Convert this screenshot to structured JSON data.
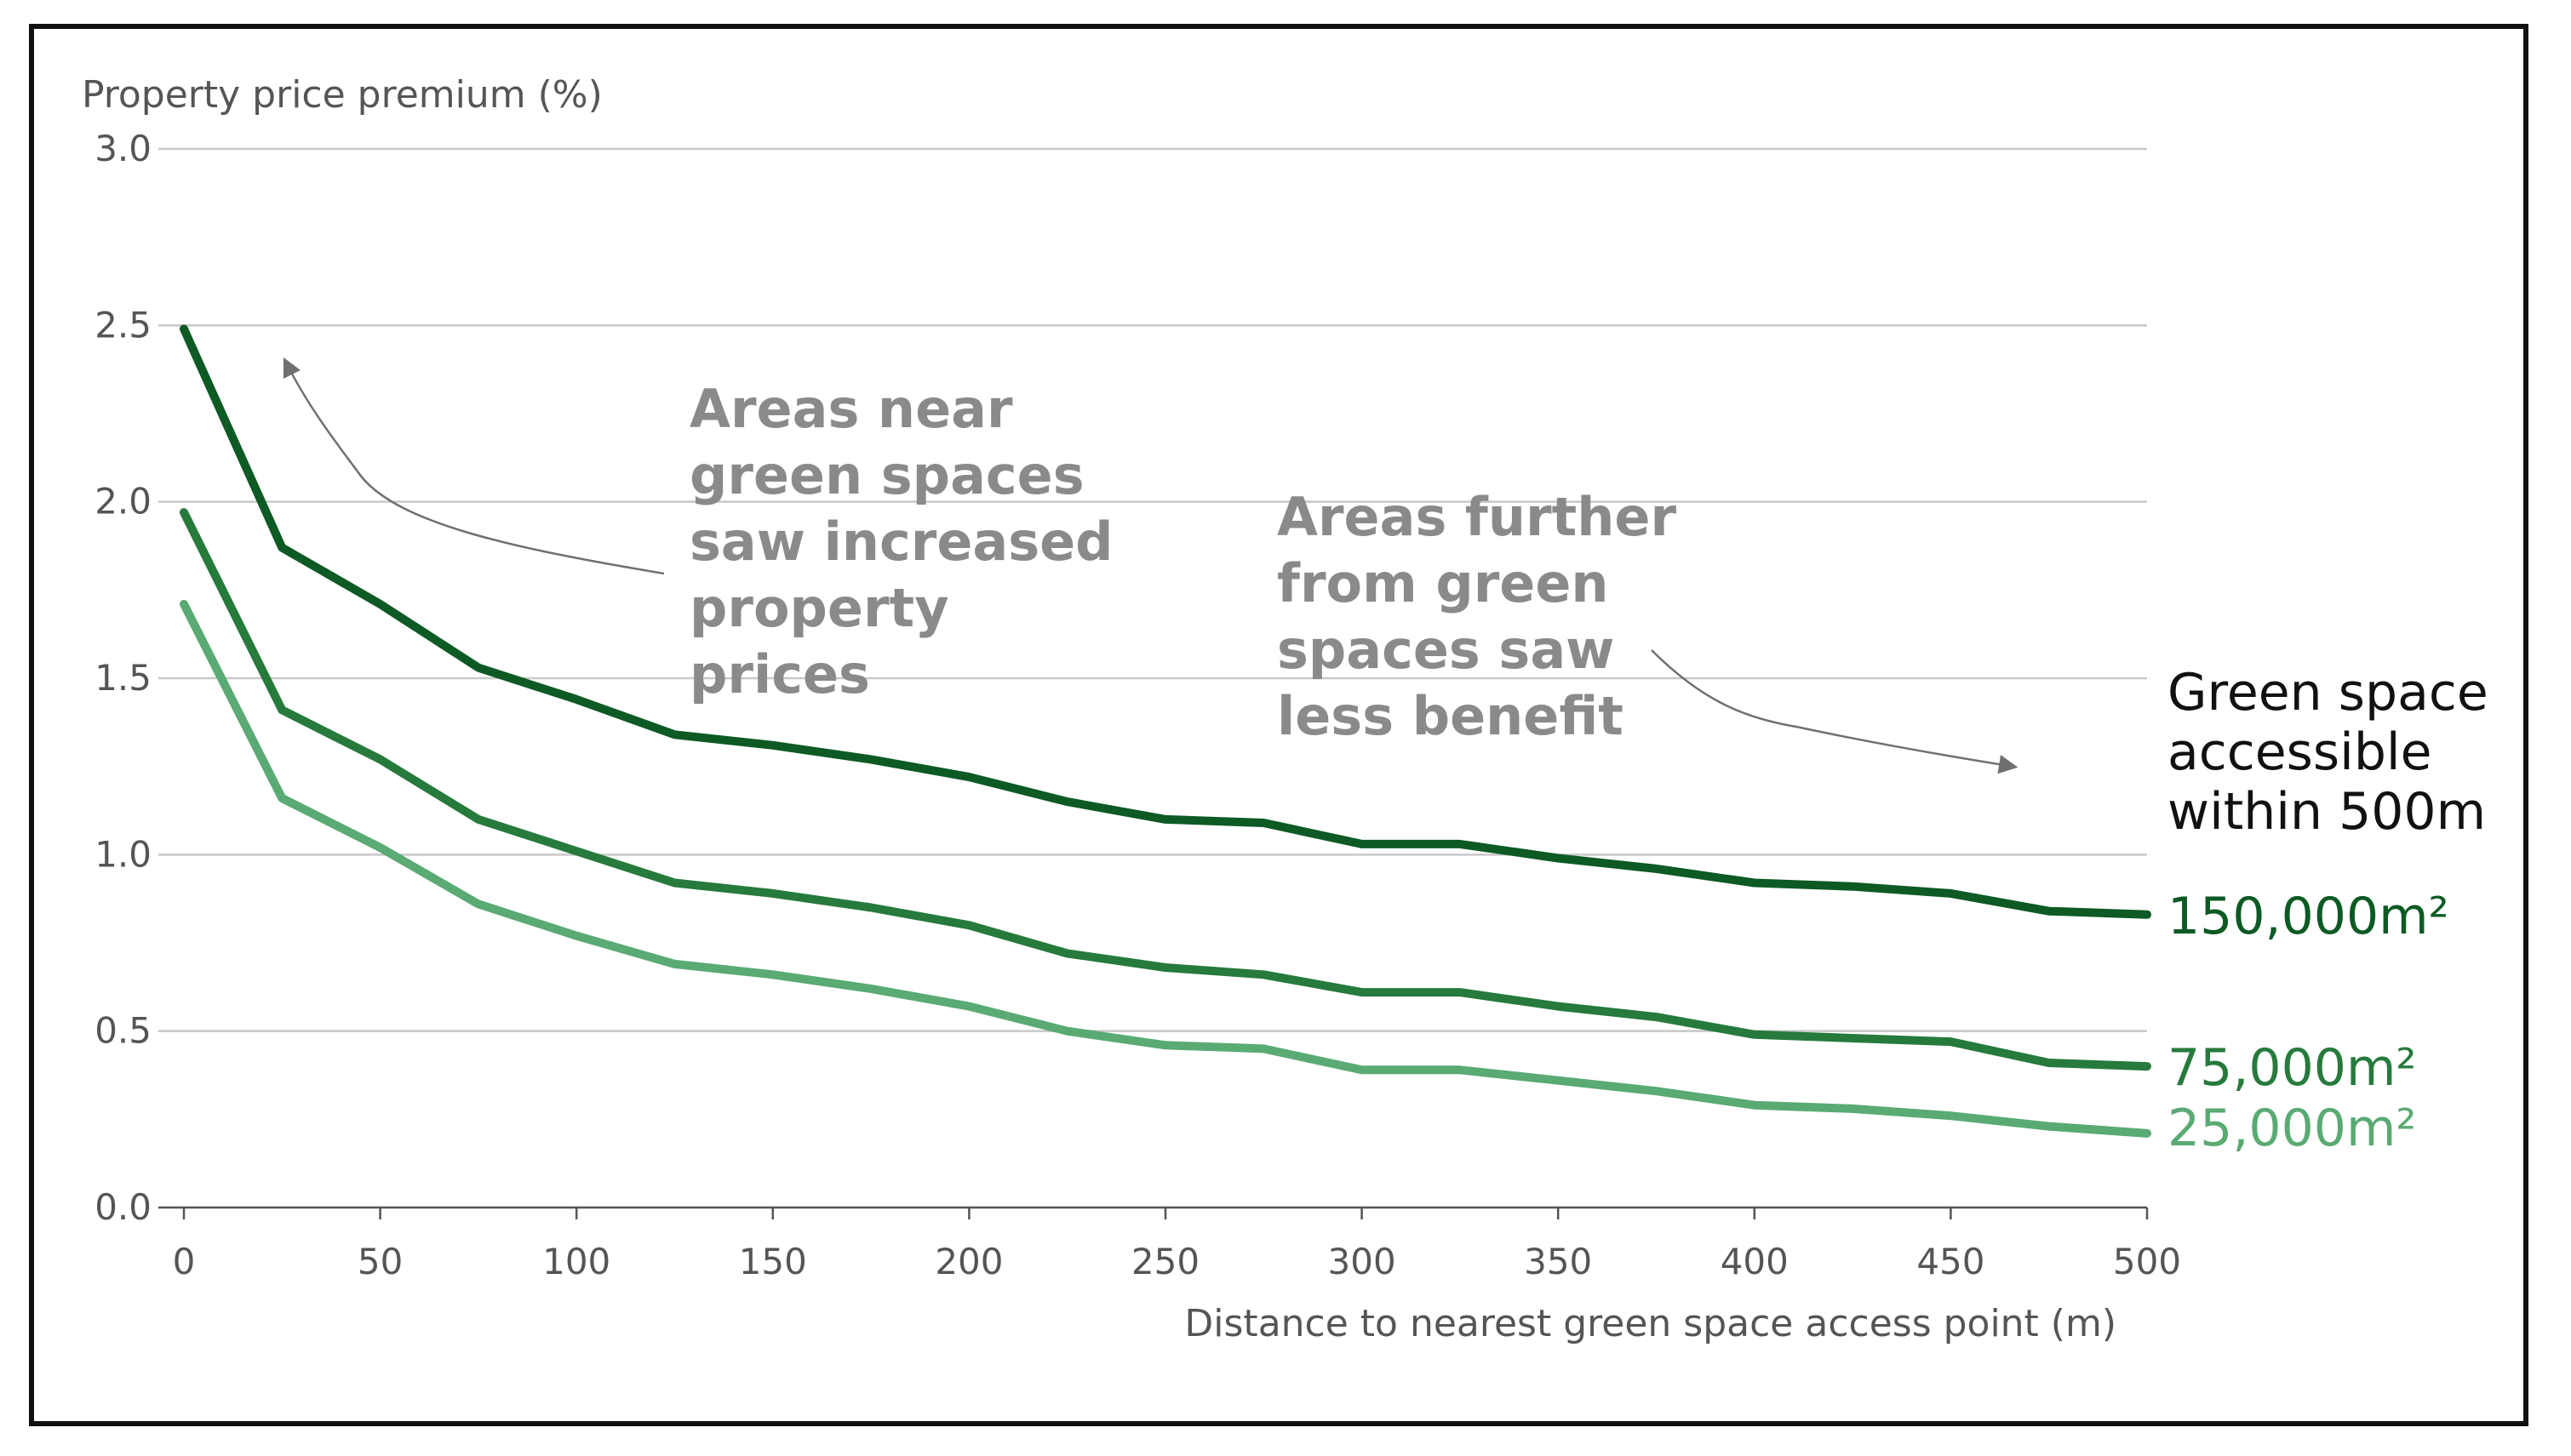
{
  "chart_data": {
    "type": "line",
    "title": "",
    "ylabel": "Property price premium (%)",
    "xlabel": "Distance to nearest green space access point (m)",
    "xlim": [
      0,
      500
    ],
    "ylim": [
      0,
      3.0
    ],
    "grid": true,
    "x": [
      0,
      25,
      50,
      75,
      100,
      125,
      150,
      175,
      200,
      225,
      250,
      275,
      300,
      325,
      350,
      375,
      400,
      425,
      450,
      475,
      500
    ],
    "x_ticks": [
      "0",
      "50",
      "100",
      "150",
      "200",
      "250",
      "300",
      "350",
      "400",
      "450",
      "500"
    ],
    "x_tick_values": [
      0,
      50,
      100,
      150,
      200,
      250,
      300,
      350,
      400,
      450,
      500
    ],
    "y_ticks": [
      "0.0",
      "0.5",
      "1.0",
      "1.5",
      "2.0",
      "2.5",
      "3.0"
    ],
    "y_tick_values": [
      0,
      0.5,
      1.0,
      1.5,
      2.0,
      2.5,
      3.0
    ],
    "legend_title": [
      "Green space",
      "accessible",
      "within 500m"
    ],
    "series": [
      {
        "name": "150,000m²",
        "color": "#0d5a24",
        "values": [
          2.49,
          1.87,
          1.71,
          1.53,
          1.44,
          1.34,
          1.31,
          1.27,
          1.22,
          1.15,
          1.1,
          1.09,
          1.03,
          1.03,
          0.99,
          0.96,
          0.92,
          0.91,
          0.89,
          0.84,
          0.83
        ]
      },
      {
        "name": "75,000m²",
        "color": "#267a3c",
        "values": [
          1.97,
          1.41,
          1.27,
          1.1,
          1.01,
          0.92,
          0.89,
          0.85,
          0.8,
          0.72,
          0.68,
          0.66,
          0.61,
          0.61,
          0.57,
          0.54,
          0.49,
          0.48,
          0.47,
          0.41,
          0.4
        ]
      },
      {
        "name": "25,000m²",
        "color": "#5aaa73",
        "values": [
          1.71,
          1.16,
          1.02,
          0.86,
          0.77,
          0.69,
          0.66,
          0.62,
          0.57,
          0.5,
          0.46,
          0.45,
          0.39,
          0.39,
          0.36,
          0.33,
          0.29,
          0.28,
          0.26,
          0.23,
          0.21
        ]
      }
    ],
    "annotations": [
      {
        "name": "near-green-spaces",
        "lines": [
          "Areas near",
          "green spaces",
          "saw increased",
          "property",
          "prices"
        ]
      },
      {
        "name": "further-from-green-spaces",
        "lines": [
          "Areas further",
          "from green",
          "spaces saw",
          "less benefit"
        ]
      }
    ]
  }
}
